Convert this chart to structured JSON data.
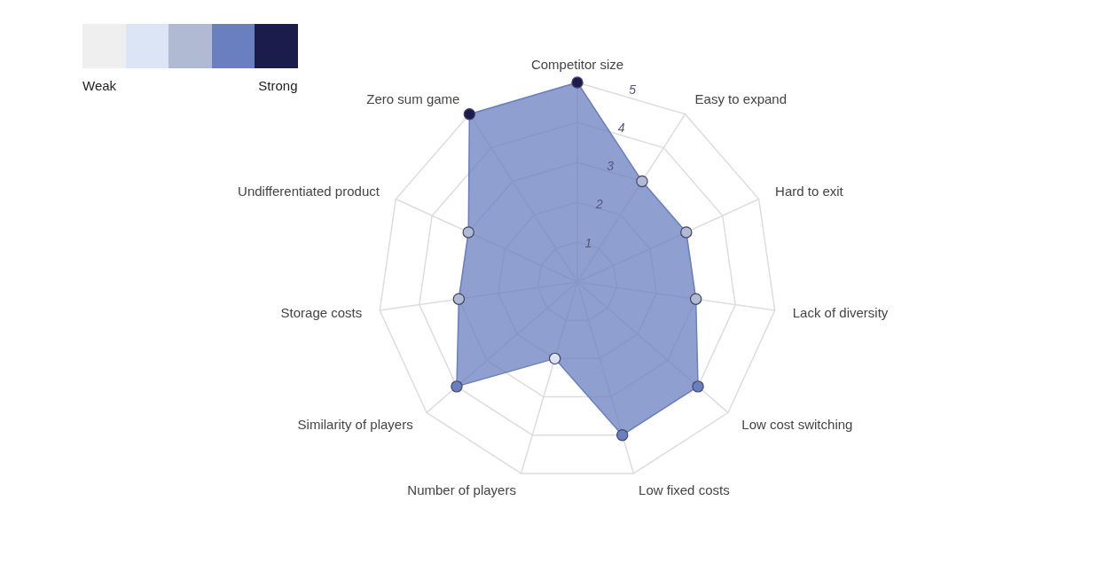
{
  "chart_data": {
    "type": "radar",
    "categories": [
      "Competitor size",
      "Easy to expand",
      "Hard to exit",
      "Lack of diversity",
      "Low cost switching",
      "Low fixed costs",
      "Number of players",
      "Similarity of players",
      "Storage costs",
      "Undifferentiated product",
      "Zero sum game"
    ],
    "series": [
      {
        "color": "#6a7fbf",
        "values": [
          5,
          3,
          3,
          3,
          4,
          4,
          2,
          4,
          3,
          3,
          5
        ],
        "colors": [
          "#1b1c4c",
          "#b0bad3",
          "#b0bad3",
          "#b0bad3",
          "#6a7fbf",
          "#6a7fbf",
          "#dce5f5",
          "#6a7fbf",
          "#b0bad3",
          "#b0bad3",
          "#1b1c4c"
        ]
      }
    ],
    "ylim": [
      0,
      5
    ],
    "yticks": [
      1,
      2,
      3,
      4,
      5
    ],
    "grid": true,
    "marker": "circle",
    "colors": [
      "#efefef",
      "#dce5f5",
      "#b0bad3",
      "#6a7fbf",
      "#1b1c4c"
    ],
    "annotations": [
      "Weak",
      "Strong"
    ]
  }
}
